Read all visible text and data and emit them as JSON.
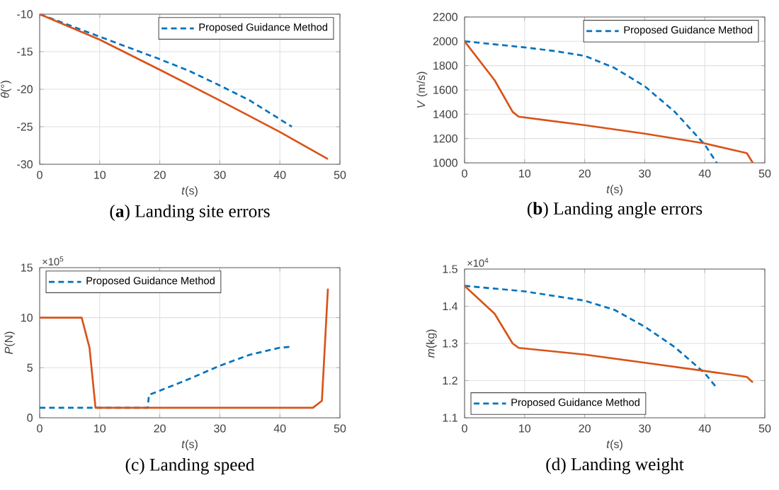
{
  "chart_data": [
    {
      "type": "line",
      "title": "(**a**) Landing site errors",
      "xlabel": "*t*(s)",
      "ylabel": "*θ*(°)",
      "xlim": [
        0,
        50
      ],
      "xticks": [
        0,
        10,
        20,
        30,
        40,
        50
      ],
      "ylim": [
        -30,
        -10
      ],
      "yticks": [
        -30,
        -25,
        -20,
        -15,
        -10
      ],
      "grid": true,
      "legend": "top right",
      "series": [
        {
          "name": "Proposed Guidance Method",
          "color": "#0072bd",
          "line_style": "dashed",
          "x": [
            0,
            5,
            10,
            15,
            20,
            25,
            30,
            35,
            40,
            42
          ],
          "values": [
            -10,
            -11.5,
            -13,
            -14.5,
            -16,
            -17.6,
            -19.5,
            -21.5,
            -24,
            -25
          ]
        },
        {
          "color": "#d95319",
          "line_style": "solid",
          "x": [
            0,
            10,
            20,
            30,
            40,
            48
          ],
          "values": [
            -10,
            -13.4,
            -17.4,
            -21.5,
            -25.7,
            -29.3
          ]
        }
      ]
    },
    {
      "type": "line",
      "title": "(**b**) Landing angle errors",
      "xlabel": "*t*(s)",
      "ylabel": "*V* (m/s)",
      "xlim": [
        0,
        50
      ],
      "xticks": [
        0,
        10,
        20,
        30,
        40,
        50
      ],
      "ylim": [
        1000,
        2200
      ],
      "yticks": [
        1000,
        1200,
        1400,
        1600,
        1800,
        2000,
        2200
      ],
      "grid": true,
      "legend": "top right",
      "series": [
        {
          "name": "Proposed Guidance Method",
          "color": "#0072bd",
          "line_style": "dashed",
          "x": [
            0,
            10,
            15,
            20,
            25,
            30,
            35,
            40,
            42
          ],
          "values": [
            2000,
            1950,
            1920,
            1880,
            1780,
            1630,
            1420,
            1150,
            1000
          ]
        },
        {
          "color": "#d95319",
          "line_style": "solid",
          "x": [
            0,
            5,
            8,
            9,
            20,
            30,
            40,
            47,
            48
          ],
          "values": [
            2000,
            1680,
            1420,
            1380,
            1310,
            1240,
            1160,
            1080,
            1000
          ]
        }
      ]
    },
    {
      "type": "line",
      "title": "(c) Landing speed",
      "xlabel": "*t*(s)",
      "ylabel": "*P*(N)",
      "annotations": [
        "×10$^{5}$"
      ],
      "xlim": [
        0,
        50
      ],
      "xticks": [
        0,
        10,
        20,
        30,
        40,
        50
      ],
      "ylim": [
        0,
        15
      ],
      "yticks": [
        0,
        5,
        10,
        15
      ],
      "grid": true,
      "legend": "top left",
      "series": [
        {
          "name": "Proposed Guidance Method",
          "color": "#0072bd",
          "line_style": "dashed",
          "x": [
            0,
            18,
            18.2,
            20,
            25,
            30,
            35,
            40,
            42
          ],
          "values": [
            1,
            1,
            2.3,
            2.7,
            3.9,
            5.2,
            6.3,
            7,
            7.1
          ]
        },
        {
          "color": "#d95319",
          "line_style": "solid",
          "x": [
            0,
            7,
            8.3,
            9.3,
            45.5,
            47,
            48
          ],
          "values": [
            10,
            10,
            7,
            1,
            1,
            1.7,
            12.9
          ]
        }
      ]
    },
    {
      "type": "line",
      "title": "(d) Landing weight",
      "xlabel": "*t*(s)",
      "ylabel": "*m*(kg)",
      "annotations": [
        "×10$^{4}$"
      ],
      "xlim": [
        0,
        50
      ],
      "xticks": [
        0,
        10,
        20,
        30,
        40,
        50
      ],
      "ylim": [
        1.1,
        1.5
      ],
      "yticks": [
        1.1,
        1.2,
        1.3,
        1.4,
        1.5
      ],
      "grid": true,
      "legend": "bottom left",
      "series": [
        {
          "name": "Proposed Guidance Method",
          "color": "#0072bd",
          "line_style": "dashed",
          "x": [
            0,
            10,
            20,
            25,
            30,
            35,
            40,
            42
          ],
          "values": [
            1.455,
            1.44,
            1.415,
            1.39,
            1.345,
            1.29,
            1.22,
            1.18
          ]
        },
        {
          "color": "#d95319",
          "line_style": "solid",
          "x": [
            0,
            5,
            8,
            9,
            20,
            30,
            40,
            47,
            48
          ],
          "values": [
            1.455,
            1.38,
            1.3,
            1.288,
            1.27,
            1.248,
            1.226,
            1.21,
            1.195
          ]
        }
      ]
    }
  ]
}
